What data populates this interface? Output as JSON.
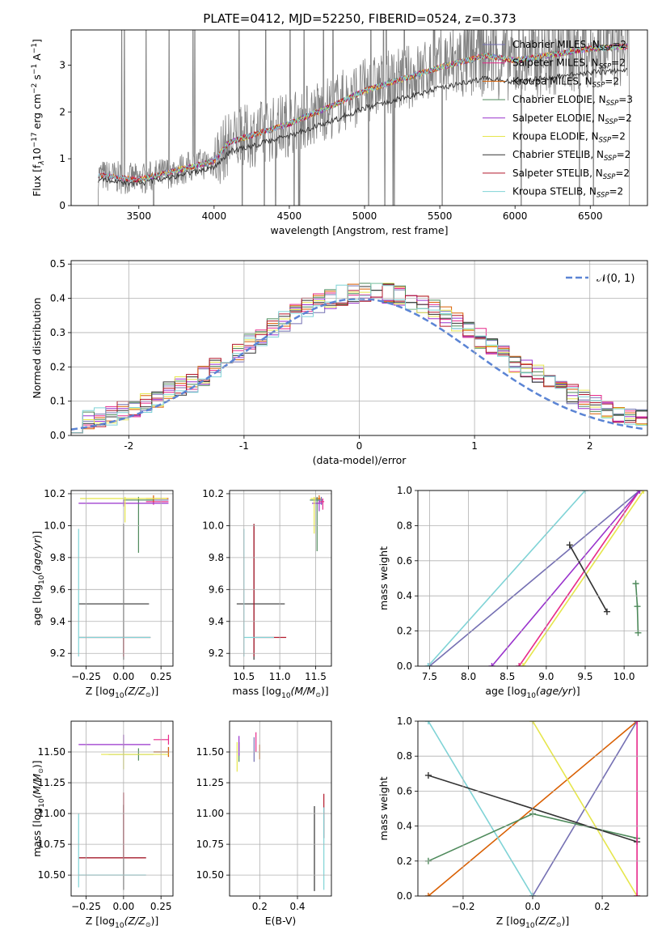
{
  "figure": {
    "title": "PLATE=0412, MJD=52250, FIBERID=0524, z=0.373",
    "legend_entries": [
      {
        "label": "Chabrier MILES, N",
        "sub": "SSP",
        "suffix": "=2",
        "color": "#7570b3"
      },
      {
        "label": "Salpeter MILES, N",
        "sub": "SSP",
        "suffix": "=2",
        "color": "#e7298a"
      },
      {
        "label": "Kroupa MILES, N",
        "sub": "SSP",
        "suffix": "=2",
        "color": "#d95f02"
      },
      {
        "label": "Chabrier ELODIE, N",
        "sub": "SSP",
        "suffix": "=3",
        "color": "#4e8a5b"
      },
      {
        "label": "Salpeter ELODIE, N",
        "sub": "SSP",
        "suffix": "=2",
        "color": "#9932cc"
      },
      {
        "label": "Kroupa ELODIE, N",
        "sub": "SSP",
        "suffix": "=2",
        "color": "#e6e64c"
      },
      {
        "label": "Chabrier STELIB, N",
        "sub": "SSP",
        "suffix": "=2",
        "color": "#333333"
      },
      {
        "label": "Salpeter STELIB, N",
        "sub": "SSP",
        "suffix": "=2",
        "color": "#b2182b"
      },
      {
        "label": "Kroupa STELIB, N",
        "sub": "SSP",
        "suffix": "=2",
        "color": "#7fd3d6"
      }
    ],
    "data_color": "#808080",
    "normal_label": "𝒩(0, 1)",
    "normal_color": "#5b84d4"
  },
  "chart_data": [
    {
      "id": "spectrum",
      "type": "line",
      "xlabel": "wavelength [Angstrom, rest frame]",
      "ylabel": "Flux [f",
      "xlim": [
        3050,
        6880
      ],
      "ylim": [
        0,
        3.75
      ],
      "xticks": [
        3500,
        4000,
        4500,
        5000,
        5500,
        6000,
        6500
      ],
      "yticks": [
        0,
        1,
        2,
        3
      ],
      "model_anchor_x": [
        3230,
        3500,
        4000,
        4100,
        4500,
        4800,
        5000,
        5200,
        5500,
        5800,
        6000,
        6300,
        6500,
        6750
      ],
      "model_anchor_y": [
        0.65,
        0.55,
        0.95,
        1.35,
        1.75,
        2.15,
        2.45,
        2.65,
        2.95,
        3.2,
        3.1,
        3.25,
        3.35,
        3.4
      ],
      "data_range_x": [
        3230,
        6760
      ],
      "grid": false
    },
    {
      "id": "residuals",
      "type": "step",
      "xlabel": "(data-model)/error",
      "ylabel": "Normed distribution",
      "xlim": [
        -2.5,
        2.5
      ],
      "ylim": [
        0,
        0.51
      ],
      "xticks": [
        -2,
        -1,
        0,
        1,
        2
      ],
      "yticks": [
        0,
        0.1,
        0.2,
        0.3,
        0.4,
        0.5
      ],
      "bin_width": 0.1,
      "legend_position": "top-right",
      "grid": true
    },
    {
      "id": "z-age",
      "type": "errorbar",
      "xlabel": "Z [log",
      "ylabel": "age  [log",
      "xlim": [
        -0.35,
        0.33
      ],
      "ylim": [
        9.12,
        10.22
      ],
      "xticks": [
        -0.25,
        0,
        0.25
      ],
      "xtick_labels": [
        "−0.25",
        "0.00",
        "0.25"
      ],
      "yticks": [
        9.2,
        9.4,
        9.6,
        9.8,
        10.0,
        10.2
      ],
      "points": [
        {
          "m": 0,
          "x": 0.2,
          "y": 10.16,
          "xe": [
            0.05,
            0.1
          ],
          "ye": [
            0.02,
            0.02
          ]
        },
        {
          "m": 1,
          "x": 0.2,
          "y": 10.15,
          "xe": [
            0.05,
            0.1
          ],
          "ye": [
            0.02,
            0.02
          ]
        },
        {
          "m": 2,
          "x": 0.2,
          "y": 10.17,
          "xe": [
            0.05,
            0.1
          ],
          "ye": [
            0.02,
            0.02
          ]
        },
        {
          "m": 3,
          "x": 0.1,
          "y": 10.16,
          "xe": [
            0.1,
            0.1
          ],
          "ye": [
            0.33,
            0.02
          ]
        },
        {
          "m": 4,
          "x": 0.0,
          "y": 10.14,
          "xe": [
            0.3,
            0.3
          ],
          "ye": [
            0.02,
            0.02
          ]
        },
        {
          "m": 5,
          "x": 0.01,
          "y": 10.17,
          "xe": [
            0.3,
            0.28
          ],
          "ye": [
            0.15,
            0.01
          ]
        },
        {
          "m": 6,
          "x": 0.0,
          "y": 9.51,
          "xe": [
            0.3,
            0.17
          ],
          "ye": [
            0.35,
            0.5
          ]
        },
        {
          "m": 7,
          "x": 0.0,
          "y": 9.3,
          "xe": [
            0.3,
            0.18
          ],
          "ye": [
            0.12,
            0.0
          ]
        },
        {
          "m": 8,
          "x": -0.3,
          "y": 9.3,
          "xe": [
            0.0,
            0.48
          ],
          "ye": [
            0.12,
            0.68
          ]
        }
      ],
      "grid": true
    },
    {
      "id": "mass-age",
      "type": "errorbar",
      "xlabel": "mass [log",
      "ylabel": "",
      "xlim": [
        10.3,
        11.72
      ],
      "ylim": [
        9.12,
        10.22
      ],
      "xticks": [
        10.5,
        11.0,
        11.5
      ],
      "xtick_labels": [
        "10.5",
        "11.0",
        "11.5"
      ],
      "yticks": [
        9.2,
        9.4,
        9.6,
        9.8,
        10.0,
        10.2
      ],
      "points": [
        {
          "m": 0,
          "x": 11.58,
          "y": 10.16,
          "xe": [
            0.05,
            0.02
          ],
          "ye": [
            0.03,
            0.02
          ]
        },
        {
          "m": 1,
          "x": 11.6,
          "y": 10.15,
          "xe": [
            0.05,
            0.02
          ],
          "ye": [
            0.05,
            0.02
          ]
        },
        {
          "m": 2,
          "x": 11.55,
          "y": 10.17,
          "xe": [
            0.05,
            0.02
          ],
          "ye": [
            0.03,
            0.02
          ]
        },
        {
          "m": 3,
          "x": 11.52,
          "y": 10.16,
          "xe": [
            0.1,
            0.05
          ],
          "ye": [
            0.32,
            0.02
          ]
        },
        {
          "m": 4,
          "x": 11.55,
          "y": 10.14,
          "xe": [
            0.1,
            0.04
          ],
          "ye": [
            0.05,
            0.02
          ]
        },
        {
          "m": 5,
          "x": 11.48,
          "y": 10.17,
          "xe": [
            0.05,
            0.02
          ],
          "ye": [
            0.22,
            0.01
          ]
        },
        {
          "m": 6,
          "x": 10.64,
          "y": 9.51,
          "xe": [
            0.24,
            0.43
          ],
          "ye": [
            0.35,
            0.5
          ]
        },
        {
          "m": 7,
          "x": 10.64,
          "y": 9.3,
          "xe": [
            0.0,
            0.45
          ],
          "ye": [
            0.12,
            0.71
          ]
        },
        {
          "m": 8,
          "x": 10.5,
          "y": 9.3,
          "xe": [
            0.0,
            0.42
          ],
          "ye": [
            0.12,
            0.68
          ]
        }
      ],
      "grid": true
    },
    {
      "id": "age-weight",
      "type": "line",
      "xlabel": "age  [log",
      "ylabel": "mass weight",
      "xlim": [
        7.35,
        10.3
      ],
      "ylim": [
        0,
        1
      ],
      "xticks": [
        7.5,
        8.0,
        8.5,
        9.0,
        9.5,
        10.0
      ],
      "xtick_labels": [
        "7.5",
        "8.0",
        "8.5",
        "9.0",
        "9.5",
        "10.0"
      ],
      "yticks": [
        0,
        0.2,
        0.4,
        0.6,
        0.8,
        1.0
      ],
      "lines": [
        {
          "m": 0,
          "x": [
            7.5,
            10.2
          ],
          "y": [
            0.0,
            1.0
          ]
        },
        {
          "m": 1,
          "x": [
            8.65,
            10.2
          ],
          "y": [
            0.0,
            1.0
          ]
        },
        {
          "m": 4,
          "x": [
            8.3,
            10.2
          ],
          "y": [
            0.0,
            1.0
          ]
        },
        {
          "m": 5,
          "x": [
            8.7,
            10.25
          ],
          "y": [
            0.0,
            1.0
          ]
        },
        {
          "m": 8,
          "x": [
            7.48,
            9.5
          ],
          "y": [
            0.0,
            1.0
          ]
        },
        {
          "m": 6,
          "x": [
            9.3,
            9.78
          ],
          "y": [
            0.69,
            0.31
          ]
        },
        {
          "m": 3,
          "x": [
            10.15,
            10.17,
            10.18
          ],
          "y": [
            0.47,
            0.34,
            0.19
          ]
        }
      ],
      "grid": true
    },
    {
      "id": "z-mass",
      "type": "errorbar",
      "xlabel": "Z [log",
      "ylabel": "mass [log",
      "xlim": [
        -0.35,
        0.33
      ],
      "ylim": [
        10.33,
        11.75
      ],
      "xticks": [
        -0.25,
        0,
        0.25
      ],
      "xtick_labels": [
        "−0.25",
        "0.00",
        "0.25"
      ],
      "yticks": [
        10.5,
        10.75,
        11.0,
        11.25,
        11.5
      ],
      "points": [
        {
          "m": 0,
          "x": 0.3,
          "y": 11.5,
          "xe": [
            0.1,
            0.0
          ],
          "ye": [
            0.04,
            0.04
          ]
        },
        {
          "m": 1,
          "x": 0.3,
          "y": 11.6,
          "xe": [
            0.1,
            0.0
          ],
          "ye": [
            0.04,
            0.04
          ]
        },
        {
          "m": 2,
          "x": 0.3,
          "y": 11.5,
          "xe": [
            0.1,
            0.0
          ],
          "ye": [
            0.04,
            0.04
          ]
        },
        {
          "m": 3,
          "x": 0.1,
          "y": 11.48,
          "xe": [
            0.2,
            0.1
          ],
          "ye": [
            0.05,
            0.05
          ]
        },
        {
          "m": 4,
          "x": 0.0,
          "y": 11.56,
          "xe": [
            0.3,
            0.18
          ],
          "ye": [
            0.05,
            0.08
          ]
        },
        {
          "m": 5,
          "x": 0.0,
          "y": 11.48,
          "xe": [
            0.15,
            0.3
          ],
          "ye": [
            0.12,
            0.05
          ]
        },
        {
          "m": 6,
          "x": 0.0,
          "y": 10.64,
          "xe": [
            0.3,
            0.15
          ],
          "ye": [
            0.26,
            0.43
          ]
        },
        {
          "m": 7,
          "x": 0.0,
          "y": 10.64,
          "xe": [
            0.3,
            0.15
          ],
          "ye": [
            0.0,
            0.53
          ]
        },
        {
          "m": 8,
          "x": -0.3,
          "y": 10.5,
          "xe": [
            0.0,
            0.45
          ],
          "ye": [
            0.1,
            0.5
          ]
        }
      ],
      "grid": true
    },
    {
      "id": "ebv-mass",
      "type": "errorbar",
      "xlabel": "E(B-V)",
      "ylabel": "",
      "xlim": [
        0.04,
        0.58
      ],
      "ylim": [
        10.33,
        11.75
      ],
      "xticks": [
        0.2,
        0.4
      ],
      "xtick_labels": [
        "0.2",
        "0.4"
      ],
      "yticks": [
        10.5,
        10.75,
        11.0,
        11.25,
        11.5
      ],
      "points": [
        {
          "m": 0,
          "x": 0.17,
          "y": 11.52,
          "xe": [
            0.0,
            0.0
          ],
          "ye": [
            0.1,
            0.1
          ]
        },
        {
          "m": 1,
          "x": 0.18,
          "y": 11.58,
          "xe": [
            0.0,
            0.0
          ],
          "ye": [
            0.08,
            0.08
          ]
        },
        {
          "m": 2,
          "x": 0.2,
          "y": 11.5,
          "xe": [
            0.0,
            0.0
          ],
          "ye": [
            0.06,
            0.06
          ]
        },
        {
          "m": 3,
          "x": 0.09,
          "y": 11.5,
          "xe": [
            0.0,
            0.0
          ],
          "ye": [
            0.08,
            0.08
          ]
        },
        {
          "m": 4,
          "x": 0.09,
          "y": 11.55,
          "xe": [
            0.0,
            0.0
          ],
          "ye": [
            0.08,
            0.08
          ]
        },
        {
          "m": 5,
          "x": 0.08,
          "y": 11.48,
          "xe": [
            0.0,
            0.0
          ],
          "ye": [
            0.14,
            0.1
          ]
        },
        {
          "m": 6,
          "x": 0.49,
          "y": 10.64,
          "xe": [
            0.0,
            0.0
          ],
          "ye": [
            0.27,
            0.42
          ]
        },
        {
          "m": 7,
          "x": 0.54,
          "y": 10.9,
          "xe": [
            0.0,
            0.0
          ],
          "ye": [
            0.1,
            0.26
          ]
        },
        {
          "m": 8,
          "x": 0.54,
          "y": 10.6,
          "xe": [
            0.0,
            0.0
          ],
          "ye": [
            0.22,
            0.45
          ]
        }
      ],
      "grid": true
    },
    {
      "id": "z-weight",
      "type": "line",
      "xlabel": "Z [log",
      "ylabel": "mass weight",
      "xlim": [
        -0.33,
        0.33
      ],
      "ylim": [
        0,
        1
      ],
      "xticks": [
        -0.2,
        0,
        0.2
      ],
      "xtick_labels": [
        "−0.2",
        "0.0",
        "0.2"
      ],
      "yticks": [
        0,
        0.2,
        0.4,
        0.6,
        0.8,
        1.0
      ],
      "lines": [
        {
          "m": 2,
          "x": [
            -0.3,
            0.3
          ],
          "y": [
            0.0,
            1.0
          ]
        },
        {
          "m": 0,
          "x": [
            0.0,
            0.3
          ],
          "y": [
            0.0,
            1.0
          ]
        },
        {
          "m": 8,
          "x": [
            -0.3,
            0.0
          ],
          "y": [
            1.0,
            0.0
          ]
        },
        {
          "m": 5,
          "x": [
            0.0,
            0.3
          ],
          "y": [
            1.0,
            0.0
          ]
        },
        {
          "m": 3,
          "x": [
            -0.3,
            0.0,
            0.3
          ],
          "y": [
            0.2,
            0.47,
            0.33
          ]
        },
        {
          "m": 6,
          "x": [
            -0.3,
            0.3
          ],
          "y": [
            0.69,
            0.31
          ]
        },
        {
          "m": 1,
          "x": [
            0.3,
            0.3
          ],
          "y": [
            0.0,
            1.0
          ]
        }
      ],
      "grid": true
    }
  ]
}
